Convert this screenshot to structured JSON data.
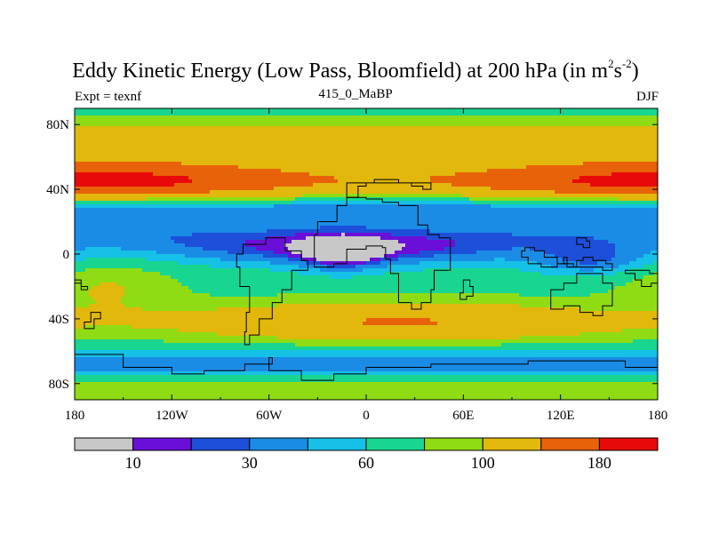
{
  "chart_data": {
    "type": "heatmap",
    "title_main": "Eddy Kinetic Energy (Low Pass, Bloomfield) at 200 hPa (in m",
    "title_sup1": "2",
    "title_mid": "s",
    "title_sup2": "-2",
    "title_end": ")",
    "left_label": "Expt = texnf",
    "center_label": "415_0_MaBP",
    "right_label": "DJF",
    "x_ticks": [
      "180",
      "120W",
      "60W",
      "0",
      "60E",
      "120E",
      "180"
    ],
    "x_tick_values": [
      -180,
      -120,
      -60,
      0,
      60,
      120,
      180
    ],
    "y_ticks": [
      "80N",
      "40N",
      "0",
      "40S",
      "80S"
    ],
    "y_tick_values": [
      80,
      40,
      0,
      -40,
      -80
    ],
    "xlim": [
      -180,
      180
    ],
    "ylim": [
      -90,
      90
    ],
    "colorbar_levels": [
      "10",
      "30",
      "60",
      "100",
      "180"
    ],
    "colorbar_colors": [
      "#c8c8c8",
      "#6a0fd8",
      "#1d4fd8",
      "#1a8ce6",
      "#16c0e6",
      "#18d690",
      "#8fdc14",
      "#e2b80c",
      "#e8620a",
      "#e80a0a"
    ],
    "contour_levels": [
      5,
      10,
      20,
      30,
      45,
      60,
      80,
      100,
      140,
      180
    ],
    "fill_colors": [
      "#c8c8c8",
      "#6a0fd8",
      "#1d4fd8",
      "#1a8ce6",
      "#16c0e6",
      "#18d690",
      "#8fdc14",
      "#e2b80c",
      "#e8620a",
      "#e80a0a"
    ]
  }
}
